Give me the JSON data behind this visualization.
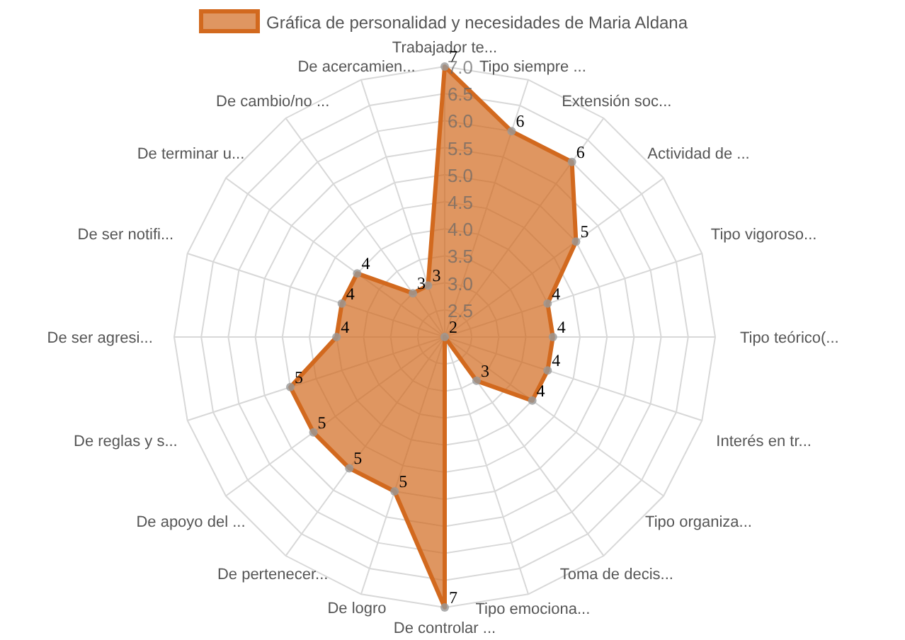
{
  "chart_data": {
    "type": "radar",
    "categories": [
      "Trabajador te...",
      "Tipo siempre ...",
      "Extensión soc...",
      "Actividad de ...",
      "Tipo vigoroso...",
      "Tipo teórico(...",
      "Interés en tr...",
      "Tipo organiza...",
      "Toma de decis...",
      "Tipo emociona...",
      "De controlar ...",
      "De logro",
      "De pertenecer...",
      "De apoyo del ...",
      "De reglas y s...",
      "De ser agresi...",
      "De ser notifi...",
      "De terminar u...",
      "De cambio/no ...",
      "De acercamien..."
    ],
    "series": [
      {
        "name": "Gráfica de personalidad y necesidades de Maria Aldana",
        "color": "#d2691e",
        "values": [
          7,
          6,
          6,
          5,
          4,
          4,
          4,
          4,
          3,
          2,
          7,
          5,
          5,
          5,
          5,
          4,
          4,
          4,
          3,
          3
        ]
      }
    ],
    "ylim": [
      2,
      7
    ],
    "yticks": [
      {
        "value": 2.5,
        "label": "2.5"
      },
      {
        "value": 3,
        "label": "3.0"
      },
      {
        "value": 3.5,
        "label": "3.5"
      },
      {
        "value": 4,
        "label": "4.0"
      },
      {
        "value": 4.5,
        "label": "4.5"
      },
      {
        "value": 5,
        "label": "5.0"
      },
      {
        "value": 5.5,
        "label": "5.5"
      },
      {
        "value": 6,
        "label": "6.0"
      },
      {
        "value": 6.5,
        "label": "6.5"
      },
      {
        "value": 7,
        "label": "7.0"
      }
    ],
    "grid": true,
    "legend": "top",
    "marker": "circle",
    "data_labels": true
  }
}
